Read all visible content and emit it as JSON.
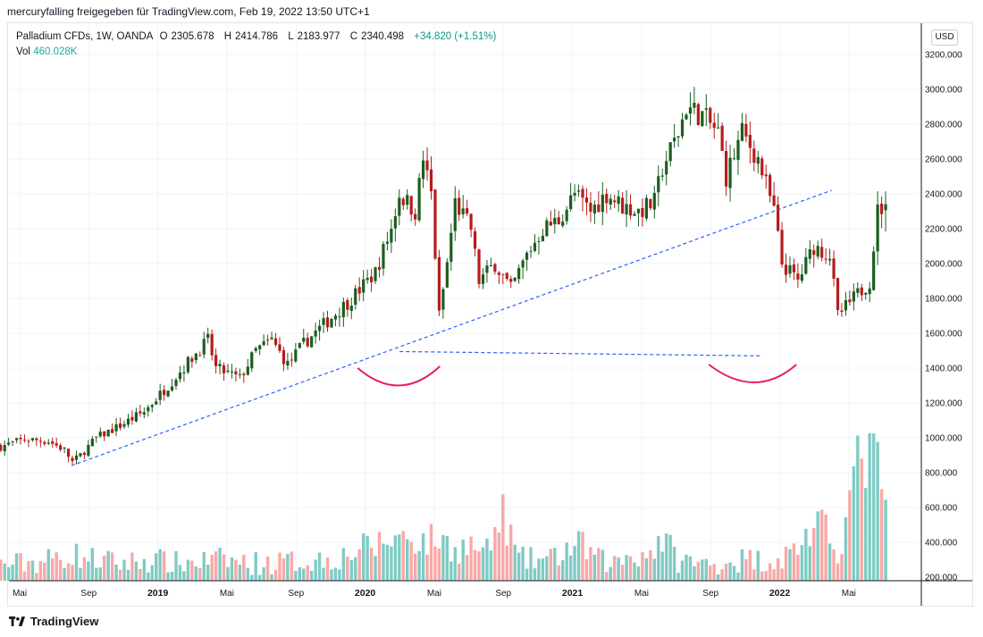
{
  "header": {
    "attribution": "mercuryfalling freigegeben für TradingView.com, Feb 19, 2022 13:50 UTC+1"
  },
  "legend": {
    "symbol": "Palladium CFDs, 1W, OANDA",
    "open_label": "O",
    "open": "2305.678",
    "high_label": "H",
    "high": "2414.786",
    "low_label": "L",
    "low": "2183.977",
    "close_label": "C",
    "close": "2340.498",
    "change": "+34.820 (+1.51%)",
    "vol_label": "Vol",
    "vol": "460.028K"
  },
  "currency": "USD",
  "footer": {
    "brand": "TradingView"
  },
  "colors": {
    "up": "#26a69a",
    "down": "#ef5350",
    "upBody": "#1b5e20",
    "downBody": "#b71c1c",
    "volUp": "#80cbc4",
    "volDown": "#f7a9a7",
    "trend": "#2962ff",
    "arc": "#e91e63"
  },
  "chart_data": {
    "type": "candlestick",
    "timeframe": "1W",
    "y_axis_right": {
      "ticks": [
        "3200.000",
        "3000.000",
        "2800.000",
        "2600.000",
        "2400.000",
        "2200.000",
        "2000.000",
        "1800.000",
        "1600.000",
        "1400.000",
        "1200.000",
        "1000.000",
        "800.000",
        "600.000",
        "400.000",
        "200.000"
      ],
      "range": [
        200,
        3300
      ]
    },
    "x_axis_ticks": [
      {
        "label": "Mai",
        "bold": false,
        "date": "2018-05"
      },
      {
        "label": "Sep",
        "bold": false,
        "date": "2018-09"
      },
      {
        "label": "2019",
        "bold": true,
        "date": "2019-01"
      },
      {
        "label": "Mai",
        "bold": false,
        "date": "2019-05"
      },
      {
        "label": "Sep",
        "bold": false,
        "date": "2019-09"
      },
      {
        "label": "2020",
        "bold": true,
        "date": "2020-01"
      },
      {
        "label": "Mai",
        "bold": false,
        "date": "2020-05"
      },
      {
        "label": "Sep",
        "bold": false,
        "date": "2020-09"
      },
      {
        "label": "2021",
        "bold": true,
        "date": "2021-01"
      },
      {
        "label": "Mai",
        "bold": false,
        "date": "2021-05"
      },
      {
        "label": "Sep",
        "bold": false,
        "date": "2021-09"
      },
      {
        "label": "2022",
        "bold": true,
        "date": "2022-01"
      },
      {
        "label": "Mai",
        "bold": false,
        "date": "2022-05"
      }
    ],
    "price_anchors": [
      [
        0,
        950
      ],
      [
        6,
        990
      ],
      [
        12,
        980
      ],
      [
        16,
        930
      ],
      [
        18,
        860
      ],
      [
        20,
        900
      ],
      [
        24,
        1000
      ],
      [
        30,
        1070
      ],
      [
        36,
        1150
      ],
      [
        42,
        1300
      ],
      [
        48,
        1460
      ],
      [
        52,
        1560
      ],
      [
        54,
        1400
      ],
      [
        60,
        1340
      ],
      [
        64,
        1500
      ],
      [
        68,
        1560
      ],
      [
        72,
        1420
      ],
      [
        76,
        1540
      ],
      [
        82,
        1670
      ],
      [
        88,
        1800
      ],
      [
        94,
        1950
      ],
      [
        98,
        2200
      ],
      [
        100,
        2400
      ],
      [
        104,
        2300
      ],
      [
        106,
        2600
      ],
      [
        108,
        2400
      ],
      [
        110,
        1700
      ],
      [
        112,
        2000
      ],
      [
        114,
        2350
      ],
      [
        118,
        2200
      ],
      [
        120,
        1900
      ],
      [
        124,
        2000
      ],
      [
        128,
        1850
      ],
      [
        132,
        2050
      ],
      [
        136,
        2200
      ],
      [
        140,
        2250
      ],
      [
        144,
        2400
      ],
      [
        148,
        2300
      ],
      [
        152,
        2400
      ],
      [
        156,
        2330
      ],
      [
        160,
        2300
      ],
      [
        164,
        2350
      ],
      [
        166,
        2550
      ],
      [
        170,
        2750
      ],
      [
        172,
        2900
      ],
      [
        176,
        2850
      ],
      [
        180,
        2750
      ],
      [
        182,
        2500
      ],
      [
        186,
        2750
      ],
      [
        190,
        2600
      ],
      [
        194,
        2300
      ],
      [
        196,
        2000
      ],
      [
        200,
        1900
      ],
      [
        204,
        2100
      ],
      [
        208,
        2050
      ],
      [
        210,
        1700
      ],
      [
        214,
        1800
      ],
      [
        218,
        1900
      ],
      [
        220,
        2300
      ],
      [
        222,
        2340
      ]
    ],
    "volume_anchors": [
      [
        0,
        270
      ],
      [
        10,
        290
      ],
      [
        18,
        330
      ],
      [
        24,
        300
      ],
      [
        30,
        280
      ],
      [
        38,
        300
      ],
      [
        44,
        280
      ],
      [
        50,
        290
      ],
      [
        56,
        300
      ],
      [
        62,
        280
      ],
      [
        68,
        280
      ],
      [
        74,
        290
      ],
      [
        80,
        300
      ],
      [
        86,
        320
      ],
      [
        90,
        360
      ],
      [
        94,
        380
      ],
      [
        98,
        420
      ],
      [
        102,
        440
      ],
      [
        106,
        400
      ],
      [
        110,
        420
      ],
      [
        114,
        360
      ],
      [
        118,
        380
      ],
      [
        122,
        340
      ],
      [
        126,
        560
      ],
      [
        130,
        300
      ],
      [
        134,
        300
      ],
      [
        138,
        300
      ],
      [
        142,
        360
      ],
      [
        146,
        380
      ],
      [
        150,
        300
      ],
      [
        154,
        280
      ],
      [
        158,
        330
      ],
      [
        162,
        330
      ],
      [
        166,
        420
      ],
      [
        170,
        300
      ],
      [
        174,
        280
      ],
      [
        178,
        270
      ],
      [
        182,
        290
      ],
      [
        186,
        300
      ],
      [
        190,
        300
      ],
      [
        194,
        300
      ],
      [
        198,
        330
      ],
      [
        202,
        440
      ],
      [
        206,
        480
      ],
      [
        210,
        360
      ],
      [
        212,
        520
      ],
      [
        214,
        760
      ],
      [
        216,
        900
      ],
      [
        218,
        880
      ],
      [
        222,
        780
      ]
    ],
    "annotations": {
      "trendline_ascending": {
        "from": {
          "date": "2018-08",
          "price": 840
        },
        "to": {
          "date": "2022-04",
          "price": 2420
        }
      },
      "support_horizontal": {
        "from": {
          "date": "2020-03",
          "price": 1495
        },
        "to": {
          "date": "2021-12",
          "price": 1470
        }
      },
      "arc_left_center_date": "2020-03",
      "arc_right_center_date": "2021-12"
    }
  }
}
